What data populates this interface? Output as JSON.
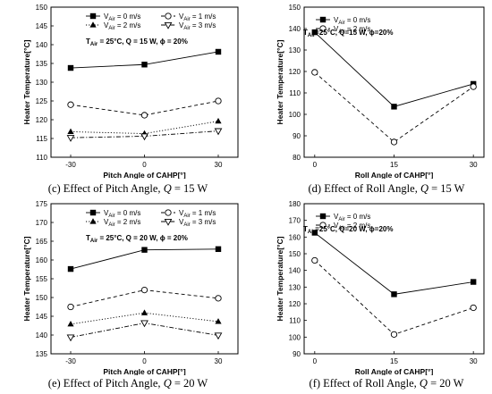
{
  "captions": [
    {
      "prefix": "(c) Effect of Pitch Angle, ",
      "var": "Q",
      "suffix": " = 15 W"
    },
    {
      "prefix": "(d) Effect of Roll Angle, ",
      "var": "Q",
      "suffix": " = 15 W"
    },
    {
      "prefix": "(e) Effect of Pitch Angle, ",
      "var": "Q",
      "suffix": " = 20 W"
    },
    {
      "prefix": "(f) Effect of Roll Angle, ",
      "var": "Q",
      "suffix": " = 20 W"
    }
  ],
  "chart_data": [
    {
      "type": "line",
      "xlabel": "Pitch Angle of CAHP[°]",
      "ylabel": "Heater Temperature[°C]",
      "x": [
        -30,
        0,
        30
      ],
      "xlim": [
        -38,
        38
      ],
      "xticks": [
        -30,
        0,
        30
      ],
      "ylim": [
        110,
        150
      ],
      "yticks": [
        110,
        115,
        120,
        125,
        130,
        135,
        140,
        145,
        150
      ],
      "annotation": "T_Air = 25°C, Q = 15 W, ϕ = 20%",
      "legend_columns": 2,
      "series": [
        {
          "name": "V_Air = 0 m/s",
          "values": [
            133.8,
            134.7,
            138.1
          ],
          "marker": "square-filled",
          "dash": "solid",
          "color": "#000000"
        },
        {
          "name": "V_Air = 1 m/s",
          "values": [
            124.0,
            121.2,
            125.0
          ],
          "marker": "circle-open",
          "dash": "dash",
          "color": "#000000"
        },
        {
          "name": "V_Air = 2 m/s",
          "values": [
            116.8,
            116.3,
            119.6
          ],
          "marker": "triangle-filled",
          "dash": "dot",
          "color": "#000000"
        },
        {
          "name": "V_Air = 3 m/s",
          "values": [
            115.2,
            115.6,
            117.0
          ],
          "marker": "triangle-down-open",
          "dash": "dashdot",
          "color": "#000000"
        }
      ]
    },
    {
      "type": "line",
      "xlabel": "Roll Angle of CAHP[°]",
      "ylabel": "Heater Temperature[°C]",
      "x": [
        0,
        15,
        30
      ],
      "xlim": [
        -2,
        32
      ],
      "xticks": [
        0,
        15,
        30
      ],
      "ylim": [
        80,
        150
      ],
      "yticks": [
        80,
        90,
        100,
        110,
        120,
        130,
        140,
        150
      ],
      "annotation": "T_Air=25°C, Q=15 W, ϕ=20%",
      "legend_columns": 1,
      "series": [
        {
          "name": "V_Air = 0 m/s",
          "values": [
            138.3,
            103.6,
            114.2
          ],
          "marker": "square-filled",
          "dash": "solid",
          "color": "#000000"
        },
        {
          "name": "V_Air = 2 m/s",
          "values": [
            119.6,
            87.1,
            112.9
          ],
          "marker": "circle-open",
          "dash": "dash",
          "color": "#000000"
        }
      ]
    },
    {
      "type": "line",
      "xlabel": "Pitch Angle of CAHP[°]",
      "ylabel": "Heater Temperature[°C]",
      "x": [
        -30,
        0,
        30
      ],
      "xlim": [
        -38,
        38
      ],
      "xticks": [
        -30,
        0,
        30
      ],
      "ylim": [
        135,
        175
      ],
      "yticks": [
        135,
        140,
        145,
        150,
        155,
        160,
        165,
        170,
        175
      ],
      "annotation": "T_Air = 25°C, Q = 20 W, ϕ = 20%",
      "legend_columns": 2,
      "series": [
        {
          "name": "V_Air = 0 m/s",
          "values": [
            157.6,
            162.7,
            162.9
          ],
          "marker": "square-filled",
          "dash": "solid",
          "color": "#000000"
        },
        {
          "name": "V_Air = 1 m/s",
          "values": [
            147.5,
            152.0,
            149.8
          ],
          "marker": "circle-open",
          "dash": "dash",
          "color": "#000000"
        },
        {
          "name": "V_Air = 2 m/s",
          "values": [
            142.9,
            145.9,
            143.6
          ],
          "marker": "triangle-filled",
          "dash": "dot",
          "color": "#000000"
        },
        {
          "name": "V_Air = 3 m/s",
          "values": [
            139.4,
            143.2,
            139.9
          ],
          "marker": "triangle-down-open",
          "dash": "dashdot",
          "color": "#000000"
        }
      ]
    },
    {
      "type": "line",
      "xlabel": "Roll Angle of CAHP[°]",
      "ylabel": "Heater Temperature[°C]",
      "x": [
        0,
        15,
        30
      ],
      "xlim": [
        -2,
        32
      ],
      "xticks": [
        0,
        15,
        30
      ],
      "ylim": [
        90,
        180
      ],
      "yticks": [
        90,
        100,
        110,
        120,
        130,
        140,
        150,
        160,
        170,
        180
      ],
      "annotation": "T_Air=25°C, Q=20 W, ϕ=20%",
      "legend_columns": 1,
      "series": [
        {
          "name": "V_Air = 0 m/s",
          "values": [
            162.6,
            125.7,
            133.1
          ],
          "marker": "square-filled",
          "dash": "solid",
          "color": "#000000"
        },
        {
          "name": "V_Air = 2 m/s",
          "values": [
            146.0,
            101.6,
            117.6
          ],
          "marker": "circle-open",
          "dash": "dash",
          "color": "#000000"
        }
      ]
    }
  ]
}
